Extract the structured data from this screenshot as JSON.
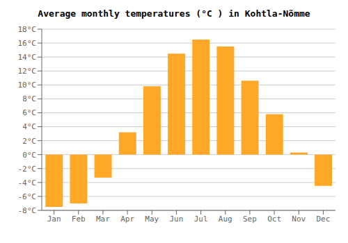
{
  "chart_data": {
    "type": "bar",
    "title": "Average monthly temperatures (°C ) in Kohtla-Nõmme",
    "categories": [
      "Jan",
      "Feb",
      "Mar",
      "Apr",
      "May",
      "Jun",
      "Jul",
      "Aug",
      "Sep",
      "Oct",
      "Nov",
      "Dec"
    ],
    "values": [
      -7.5,
      -7.0,
      -3.3,
      3.2,
      9.8,
      14.5,
      16.5,
      15.5,
      10.6,
      5.8,
      0.3,
      -4.5
    ],
    "color": "#FFA726",
    "ylim": [
      -8,
      18
    ],
    "yticks": [
      {
        "value": -8,
        "label": "-8°C"
      },
      {
        "value": -6,
        "label": "-6°C"
      },
      {
        "value": -4,
        "label": "-4°C"
      },
      {
        "value": -2,
        "label": "-2°C"
      },
      {
        "value": 0,
        "label": "0°C"
      },
      {
        "value": 2,
        "label": "2°C"
      },
      {
        "value": 4,
        "label": "4°C"
      },
      {
        "value": 6,
        "label": "6°C"
      },
      {
        "value": 8,
        "label": "8°C"
      },
      {
        "value": 10,
        "label": "10°C"
      },
      {
        "value": 12,
        "label": "12°C"
      },
      {
        "value": 14,
        "label": "14°C"
      },
      {
        "value": 16,
        "label": "16°C"
      },
      {
        "value": 18,
        "label": "18°C"
      }
    ],
    "grid": true
  }
}
